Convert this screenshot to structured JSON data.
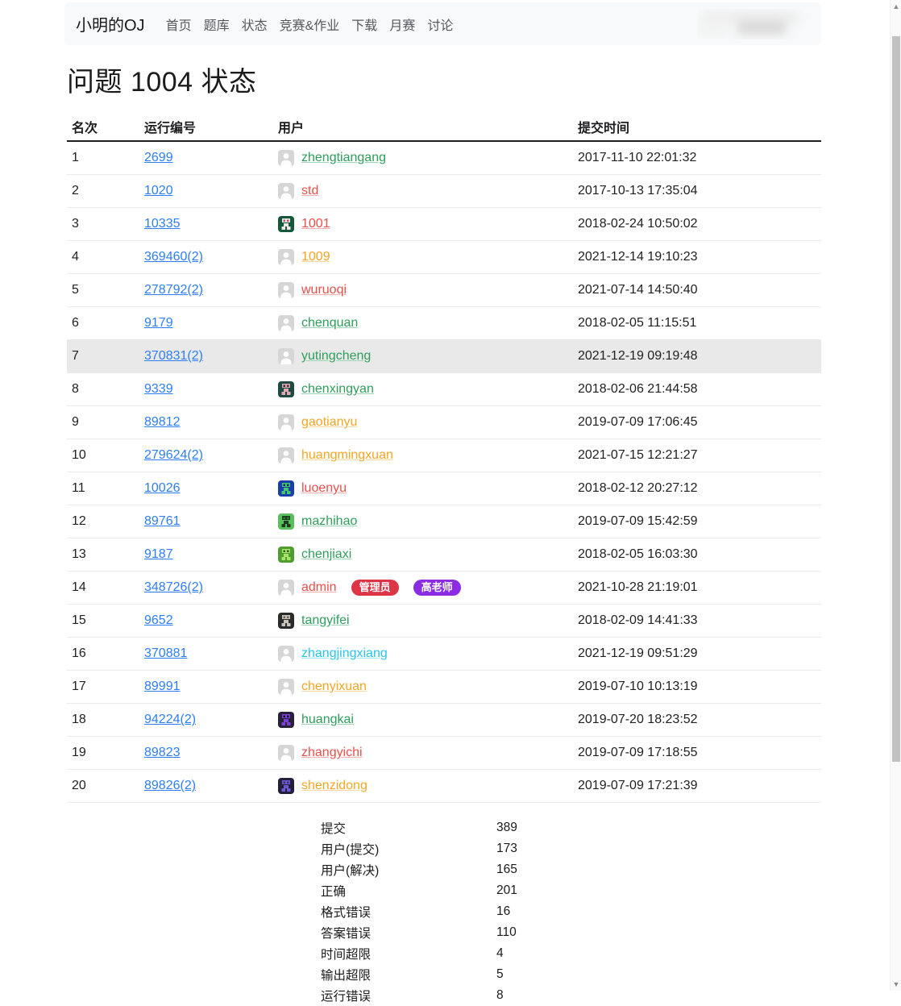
{
  "navbar": {
    "brand": "小明的OJ",
    "items": [
      "首页",
      "题库",
      "状态",
      "竞赛&作业",
      "下载",
      "月赛",
      "讨论"
    ]
  },
  "page_title": "问题 1004 状态",
  "table": {
    "headers": [
      "名次",
      "运行编号",
      "用户",
      "提交时间"
    ],
    "rows": [
      {
        "rank": "1",
        "run_id": "2699",
        "user": "zhengtiangang",
        "user_color": "green",
        "avatar": {
          "type": "person"
        },
        "time": "2017-11-10 22:01:32",
        "highlight": false,
        "badges": []
      },
      {
        "rank": "2",
        "run_id": "1020",
        "user": "std",
        "user_color": "red",
        "avatar": {
          "type": "person"
        },
        "time": "2017-10-13 17:35:04",
        "highlight": false,
        "badges": []
      },
      {
        "rank": "3",
        "run_id": "10335",
        "user": "1001",
        "user_color": "red",
        "avatar": {
          "type": "pixel",
          "bg": "#15573c",
          "fg": "#ece9e6",
          "accent": "#b55a6b"
        },
        "time": "2018-02-24 10:50:02",
        "highlight": false,
        "badges": []
      },
      {
        "rank": "4",
        "run_id": "369460(2)",
        "user": "1009",
        "user_color": "orange",
        "avatar": {
          "type": "person"
        },
        "time": "2021-12-14 19:10:23",
        "highlight": false,
        "badges": []
      },
      {
        "rank": "5",
        "run_id": "278792(2)",
        "user": "wuruoqi",
        "user_color": "red",
        "avatar": {
          "type": "person"
        },
        "time": "2021-07-14 14:50:40",
        "highlight": false,
        "badges": []
      },
      {
        "rank": "6",
        "run_id": "9179",
        "user": "chenquan",
        "user_color": "green",
        "avatar": {
          "type": "person"
        },
        "time": "2018-02-05 11:15:51",
        "highlight": false,
        "badges": []
      },
      {
        "rank": "7",
        "run_id": "370831(2)",
        "user": "yutingcheng",
        "user_color": "green",
        "avatar": {
          "type": "person"
        },
        "time": "2021-12-19 09:19:48",
        "highlight": true,
        "badges": []
      },
      {
        "rank": "8",
        "run_id": "9339",
        "user": "chenxingyan",
        "user_color": "green",
        "avatar": {
          "type": "pixel",
          "bg": "#1f4a44",
          "fg": "#e0a7b0",
          "accent": "#3a2d33"
        },
        "time": "2018-02-06 21:44:58",
        "highlight": false,
        "badges": []
      },
      {
        "rank": "9",
        "run_id": "89812",
        "user": "gaotianyu",
        "user_color": "orange",
        "avatar": {
          "type": "person"
        },
        "time": "2019-07-09 17:06:45",
        "highlight": false,
        "badges": []
      },
      {
        "rank": "10",
        "run_id": "279624(2)",
        "user": "huangmingxuan",
        "user_color": "orange",
        "avatar": {
          "type": "person"
        },
        "time": "2021-07-15 12:21:27",
        "highlight": false,
        "badges": []
      },
      {
        "rank": "11",
        "run_id": "10026",
        "user": "luoenyu",
        "user_color": "red",
        "avatar": {
          "type": "pixel",
          "bg": "#1b3faa",
          "fg": "#43c56e",
          "accent": "#0f2a6e"
        },
        "time": "2018-02-12 20:27:12",
        "highlight": false,
        "badges": []
      },
      {
        "rank": "12",
        "run_id": "89761",
        "user": "mazhihao",
        "user_color": "green",
        "avatar": {
          "type": "pixel",
          "bg": "#57c05c",
          "fg": "#1c3b1e",
          "accent": "#2e7a33"
        },
        "time": "2019-07-09 15:42:59",
        "highlight": false,
        "badges": []
      },
      {
        "rank": "13",
        "run_id": "9187",
        "user": "chenjiaxi",
        "user_color": "green",
        "avatar": {
          "type": "pixel",
          "bg": "#4f9d2f",
          "fg": "#a8e26a",
          "accent": "#2c5e18"
        },
        "time": "2018-02-05 16:03:30",
        "highlight": false,
        "badges": []
      },
      {
        "rank": "14",
        "run_id": "348726(2)",
        "user": "admin",
        "user_color": "red",
        "avatar": {
          "type": "person"
        },
        "time": "2021-10-28 21:19:01",
        "highlight": false,
        "badges": [
          {
            "label": "管理员",
            "bg": "#dc3545"
          },
          {
            "label": "高老师",
            "bg": "#8b2be2"
          }
        ]
      },
      {
        "rank": "15",
        "run_id": "9652",
        "user": "tangyifei",
        "user_color": "green",
        "avatar": {
          "type": "pixel",
          "bg": "#2b2b2b",
          "fg": "#c9c2b8",
          "accent": "#6e665c"
        },
        "time": "2018-02-09 14:41:33",
        "highlight": false,
        "badges": []
      },
      {
        "rank": "16",
        "run_id": "370881",
        "user": "zhangjingxiang",
        "user_color": "cyan",
        "avatar": {
          "type": "person"
        },
        "time": "2021-12-19 09:51:29",
        "highlight": false,
        "badges": []
      },
      {
        "rank": "17",
        "run_id": "89991",
        "user": "chenyixuan",
        "user_color": "orange",
        "avatar": {
          "type": "person"
        },
        "time": "2019-07-10 10:13:19",
        "highlight": false,
        "badges": []
      },
      {
        "rank": "18",
        "run_id": "94224(2)",
        "user": "huangkai",
        "user_color": "green",
        "avatar": {
          "type": "pixel",
          "bg": "#27203a",
          "fg": "#7b3fd4",
          "accent": "#120d22"
        },
        "time": "2019-07-20 18:23:52",
        "highlight": false,
        "badges": []
      },
      {
        "rank": "19",
        "run_id": "89823",
        "user": "zhangyichi",
        "user_color": "red",
        "avatar": {
          "type": "person"
        },
        "time": "2019-07-09 17:18:55",
        "highlight": false,
        "badges": []
      },
      {
        "rank": "20",
        "run_id": "89826(2)",
        "user": "shenzidong",
        "user_color": "orange",
        "avatar": {
          "type": "pixel",
          "bg": "#241f3d",
          "fg": "#6b5bd0",
          "accent": "#3c3470"
        },
        "time": "2019-07-09 17:21:39",
        "highlight": false,
        "badges": []
      }
    ]
  },
  "stats": {
    "rows": [
      {
        "label": "提交",
        "value": "389"
      },
      {
        "label": "用户(提交)",
        "value": "173"
      },
      {
        "label": "用户(解决)",
        "value": "165"
      },
      {
        "label": "正确",
        "value": "201"
      },
      {
        "label": "格式错误",
        "value": "16"
      },
      {
        "label": "答案错误",
        "value": "110"
      },
      {
        "label": "时间超限",
        "value": "4"
      },
      {
        "label": "输出超限",
        "value": "5"
      },
      {
        "label": "运行错误",
        "value": "8"
      }
    ]
  },
  "colors": {
    "link_blue": "#2d7ef7",
    "user_green": "#2f9e5b",
    "user_red": "#e8504b",
    "user_orange": "#f5a623",
    "user_cyan": "#29c5ee",
    "badge_admin": "#dc3545",
    "badge_teacher": "#8b2be2",
    "row_highlight": "#e9e9e9",
    "navbar_bg": "#f8f9fa"
  }
}
